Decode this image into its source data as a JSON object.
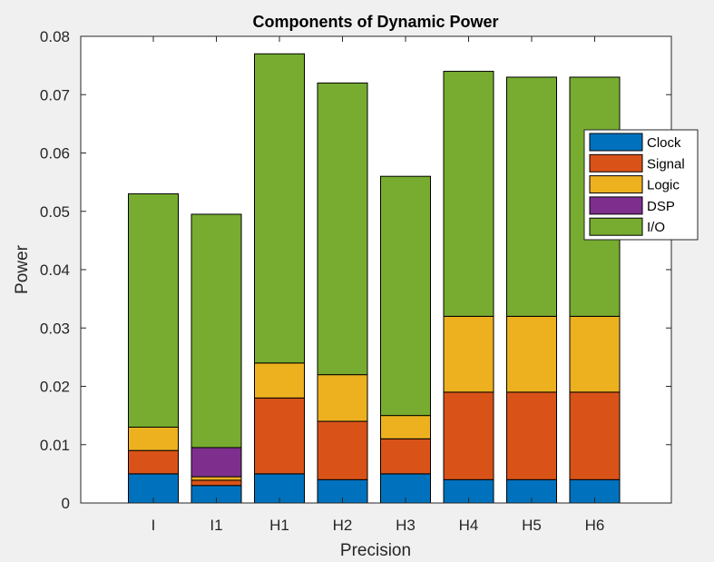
{
  "chart_data": {
    "type": "bar",
    "stacked": true,
    "title": "Components of Dynamic Power",
    "xlabel": "Precision",
    "ylabel": "Power",
    "categories": [
      "I",
      "I1",
      "H1",
      "H2",
      "H3",
      "H4",
      "H5",
      "H6"
    ],
    "ylim": [
      0,
      0.08
    ],
    "yticks": [
      "0",
      "0.01",
      "0.02",
      "0.03",
      "0.04",
      "0.05",
      "0.06",
      "0.07",
      "0.08"
    ],
    "grid": false,
    "legend_position": "right",
    "series": [
      {
        "name": "Clock",
        "color": "#0072bd",
        "values": [
          0.005,
          0.003,
          0.005,
          0.004,
          0.005,
          0.004,
          0.004,
          0.004
        ]
      },
      {
        "name": "Signal",
        "color": "#d95319",
        "values": [
          0.004,
          0.0009,
          0.013,
          0.01,
          0.006,
          0.015,
          0.015,
          0.015
        ]
      },
      {
        "name": "Logic",
        "color": "#edb120",
        "values": [
          0.004,
          0.0006,
          0.006,
          0.008,
          0.004,
          0.013,
          0.013,
          0.013
        ]
      },
      {
        "name": "DSP",
        "color": "#7e2f8e",
        "values": [
          0,
          0.005,
          0,
          0,
          0,
          0,
          0,
          0
        ]
      },
      {
        "name": "I/O",
        "color": "#77ac30",
        "values": [
          0.04,
          0.04,
          0.053,
          0.05,
          0.041,
          0.042,
          0.041,
          0.041
        ]
      }
    ]
  }
}
